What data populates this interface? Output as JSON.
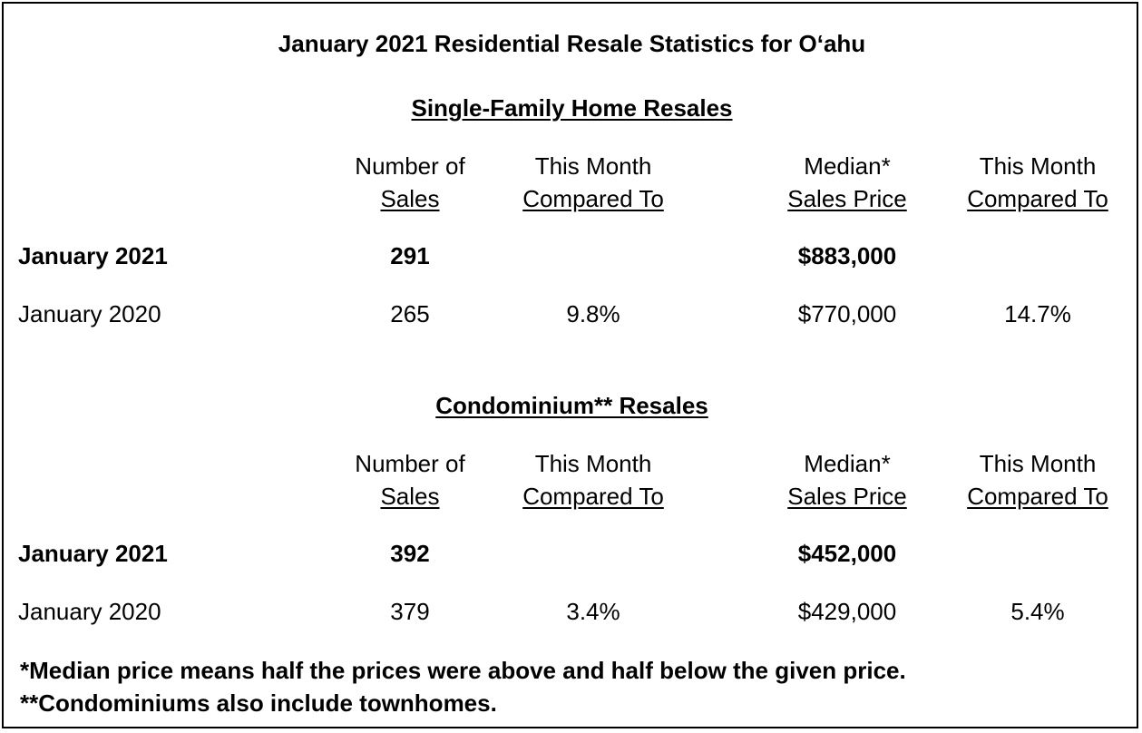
{
  "title": "January 2021 Residential Resale Statistics for O‘ahu",
  "sections": [
    {
      "heading": "Single-Family Home Resales",
      "columns": [
        {
          "line1": "Number of",
          "line2": "Sales"
        },
        {
          "line1": "This Month",
          "line2": "Compared To"
        },
        {
          "line1": "Median*",
          "line2": "Sales Price"
        },
        {
          "line1": "This Month",
          "line2": "Compared To"
        }
      ],
      "rows": [
        {
          "label": "January 2021",
          "sales": "291",
          "sales_change": "",
          "median": "$883,000",
          "median_change": ""
        },
        {
          "label": "January 2020",
          "sales": "265",
          "sales_change": "9.8%",
          "median": "$770,000",
          "median_change": "14.7%"
        }
      ]
    },
    {
      "heading": "Condominium** Resales",
      "columns": [
        {
          "line1": "Number of",
          "line2": "Sales"
        },
        {
          "line1": "This Month",
          "line2": "Compared To"
        },
        {
          "line1": "Median*",
          "line2": "Sales Price"
        },
        {
          "line1": "This Month",
          "line2": "Compared To"
        }
      ],
      "rows": [
        {
          "label": "January 2021",
          "sales": "392",
          "sales_change": "",
          "median": "$452,000",
          "median_change": ""
        },
        {
          "label": "January 2020",
          "sales": "379",
          "sales_change": "3.4%",
          "median": "$429,000",
          "median_change": "5.4%"
        }
      ]
    }
  ],
  "footnotes": [
    "*Median price means half the prices were above and half below the given price.",
    "**Condominiums also include townhomes."
  ]
}
